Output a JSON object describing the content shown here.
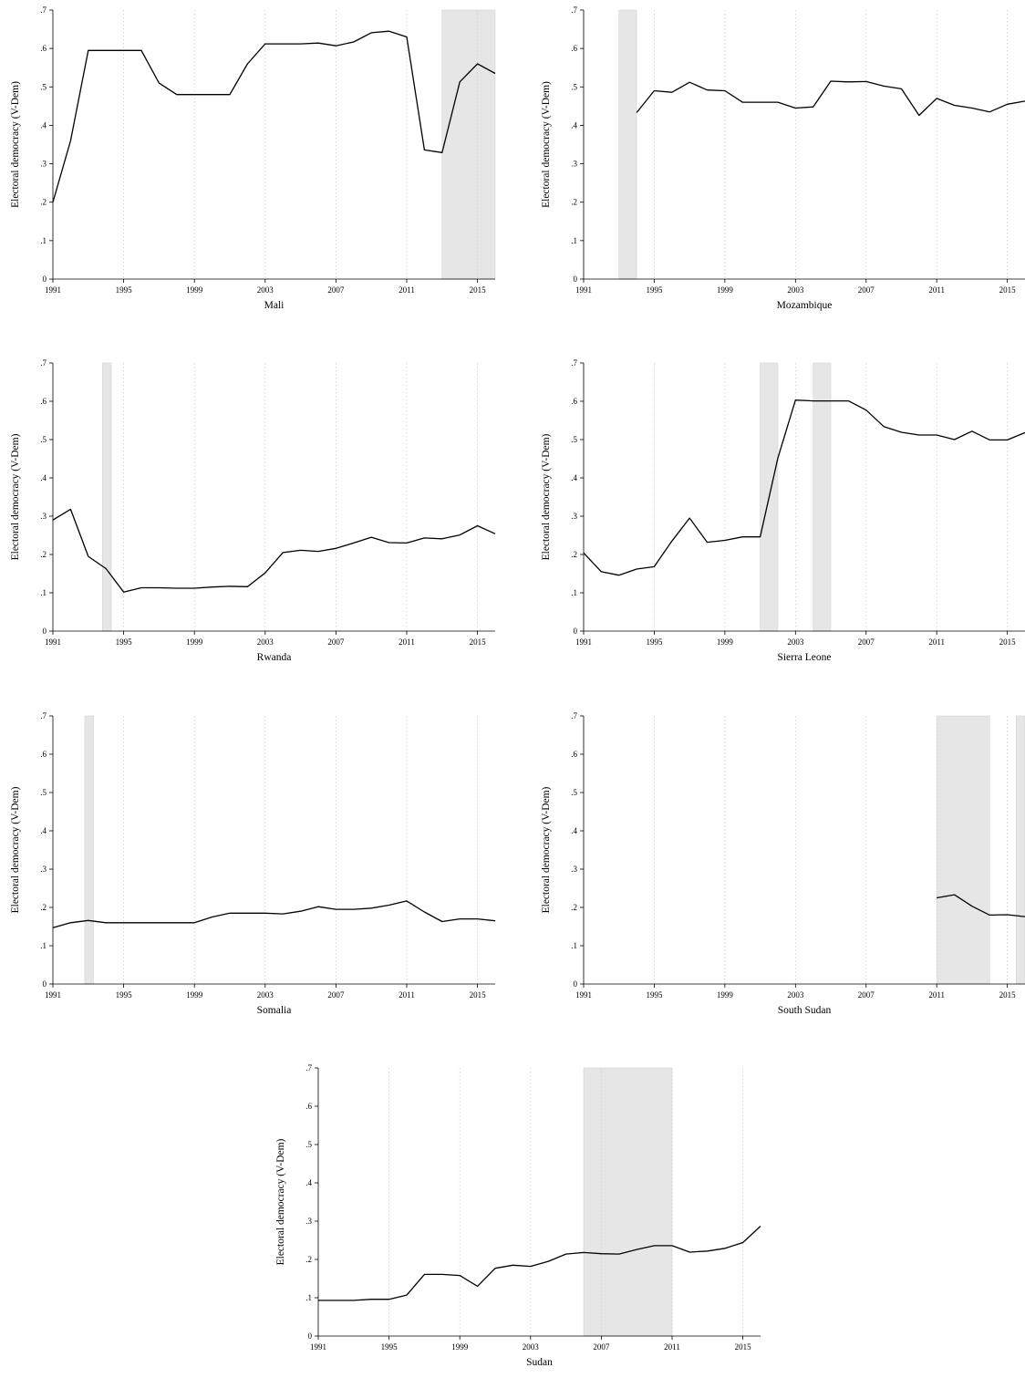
{
  "colors": {
    "line": "#000000",
    "shade": "#e6e6e6",
    "grid": "#cfcfcf",
    "axis": "#000000"
  },
  "chart_data": [
    {
      "type": "line",
      "country": "Mali",
      "xlabel": "Mali",
      "ylabel": "Electoral democracy (V-Dem)",
      "xlim": [
        1991,
        2016
      ],
      "ylim": [
        0,
        0.7
      ],
      "xticks": [
        1991,
        1995,
        1999,
        2003,
        2007,
        2011,
        2015
      ],
      "yticks": [
        0,
        0.1,
        0.2,
        0.3,
        0.4,
        0.5,
        0.6,
        0.7
      ],
      "ytick_labels": [
        "0",
        ".1",
        ".2",
        ".3",
        ".4",
        ".5",
        ".6",
        ".7"
      ],
      "grid": "vertical dotted at x ticks",
      "shaded_periods": [
        [
          2013,
          2016
        ]
      ],
      "x": [
        1991,
        1992,
        1993,
        1994,
        1995,
        1996,
        1997,
        1998,
        1999,
        2000,
        2001,
        2002,
        2003,
        2004,
        2005,
        2006,
        2007,
        2008,
        2009,
        2010,
        2011,
        2012,
        2013,
        2014,
        2015,
        2016
      ],
      "y": [
        0.2,
        0.36,
        0.595,
        0.595,
        0.595,
        0.595,
        0.51,
        0.48,
        0.48,
        0.48,
        0.48,
        0.56,
        0.612,
        0.612,
        0.612,
        0.614,
        0.607,
        0.617,
        0.641,
        0.645,
        0.63,
        0.336,
        0.329,
        0.513,
        0.56,
        0.535
      ]
    },
    {
      "type": "line",
      "country": "Mozambique",
      "xlabel": "Mozambique",
      "ylabel": "Electoral democracy (V-Dem)",
      "xlim": [
        1991,
        2016
      ],
      "ylim": [
        0,
        0.7
      ],
      "xticks": [
        1991,
        1995,
        1999,
        2003,
        2007,
        2011,
        2015
      ],
      "yticks": [
        0,
        0.1,
        0.2,
        0.3,
        0.4,
        0.5,
        0.6,
        0.7
      ],
      "ytick_labels": [
        "0",
        ".1",
        ".2",
        ".3",
        ".4",
        ".5",
        ".6",
        ".7"
      ],
      "grid": "vertical dotted at x ticks",
      "shaded_periods": [
        [
          1993,
          1994
        ]
      ],
      "x": [
        1994,
        1995,
        1996,
        1997,
        1998,
        1999,
        2000,
        2001,
        2002,
        2003,
        2004,
        2005,
        2006,
        2007,
        2008,
        2009,
        2010,
        2011,
        2012,
        2013,
        2014,
        2015,
        2016
      ],
      "y": [
        0.433,
        0.49,
        0.486,
        0.512,
        0.492,
        0.49,
        0.46,
        0.46,
        0.46,
        0.445,
        0.448,
        0.515,
        0.513,
        0.514,
        0.502,
        0.495,
        0.426,
        0.47,
        0.452,
        0.445,
        0.435,
        0.455,
        0.463
      ]
    },
    {
      "type": "line",
      "country": "Rwanda",
      "xlabel": "Rwanda",
      "ylabel": "Electoral democracy (V-Dem)",
      "xlim": [
        1991,
        2016
      ],
      "ylim": [
        0,
        0.7
      ],
      "xticks": [
        1991,
        1995,
        1999,
        2003,
        2007,
        2011,
        2015
      ],
      "yticks": [
        0,
        0.1,
        0.2,
        0.3,
        0.4,
        0.5,
        0.6,
        0.7
      ],
      "ytick_labels": [
        "0",
        ".1",
        ".2",
        ".3",
        ".4",
        ".5",
        ".6",
        ".7"
      ],
      "grid": "vertical dotted at x ticks",
      "shaded_periods": [
        [
          1993.8,
          1994.3
        ]
      ],
      "x": [
        1991,
        1992,
        1993,
        1994,
        1995,
        1996,
        1997,
        1998,
        1999,
        2000,
        2001,
        2002,
        2003,
        2004,
        2005,
        2006,
        2007,
        2008,
        2009,
        2010,
        2011,
        2012,
        2013,
        2014,
        2015,
        2016
      ],
      "y": [
        0.29,
        0.318,
        0.195,
        0.163,
        0.102,
        0.113,
        0.113,
        0.112,
        0.112,
        0.115,
        0.117,
        0.116,
        0.152,
        0.205,
        0.211,
        0.208,
        0.216,
        0.23,
        0.245,
        0.231,
        0.23,
        0.243,
        0.241,
        0.251,
        0.275,
        0.254
      ]
    },
    {
      "type": "line",
      "country": "Sierra Leone",
      "xlabel": "Sierra Leone",
      "ylabel": "Electoral democracy (V-Dem)",
      "xlim": [
        1991,
        2016
      ],
      "ylim": [
        0,
        0.7
      ],
      "xticks": [
        1991,
        1995,
        1999,
        2003,
        2007,
        2011,
        2015
      ],
      "yticks": [
        0,
        0.1,
        0.2,
        0.3,
        0.4,
        0.5,
        0.6,
        0.7
      ],
      "ytick_labels": [
        "0",
        ".1",
        ".2",
        ".3",
        ".4",
        ".5",
        ".6",
        ".7"
      ],
      "grid": "vertical dotted at x ticks",
      "shaded_periods": [
        [
          2001,
          2002
        ],
        [
          2004,
          2005
        ]
      ],
      "x": [
        1991,
        1992,
        1993,
        1994,
        1995,
        1996,
        1997,
        1998,
        1999,
        2000,
        2001,
        2002,
        2003,
        2004,
        2005,
        2006,
        2007,
        2008,
        2009,
        2010,
        2011,
        2012,
        2013,
        2014,
        2015,
        2016
      ],
      "y": [
        0.204,
        0.155,
        0.146,
        0.162,
        0.168,
        0.235,
        0.295,
        0.232,
        0.237,
        0.246,
        0.246,
        0.452,
        0.603,
        0.601,
        0.601,
        0.601,
        0.577,
        0.534,
        0.519,
        0.512,
        0.512,
        0.5,
        0.522,
        0.499,
        0.499,
        0.518
      ]
    },
    {
      "type": "line",
      "country": "Somalia",
      "xlabel": "Somalia",
      "ylabel": "Electoral democracy (V-Dem)",
      "xlim": [
        1991,
        2016
      ],
      "ylim": [
        0,
        0.7
      ],
      "xticks": [
        1991,
        1995,
        1999,
        2003,
        2007,
        2011,
        2015
      ],
      "yticks": [
        0,
        0.1,
        0.2,
        0.3,
        0.4,
        0.5,
        0.6,
        0.7
      ],
      "ytick_labels": [
        "0",
        ".1",
        ".2",
        ".3",
        ".4",
        ".5",
        ".6",
        ".7"
      ],
      "grid": "vertical dotted at x ticks",
      "shaded_periods": [
        [
          1992.8,
          1993.3
        ]
      ],
      "x": [
        1991,
        1992,
        1993,
        1994,
        1995,
        1996,
        1997,
        1998,
        1999,
        2000,
        2001,
        2002,
        2003,
        2004,
        2005,
        2006,
        2007,
        2008,
        2009,
        2010,
        2011,
        2012,
        2013,
        2014,
        2015,
        2016
      ],
      "y": [
        0.147,
        0.16,
        0.166,
        0.16,
        0.16,
        0.16,
        0.16,
        0.16,
        0.16,
        0.175,
        0.185,
        0.185,
        0.185,
        0.183,
        0.19,
        0.202,
        0.195,
        0.195,
        0.198,
        0.206,
        0.217,
        0.188,
        0.163,
        0.17,
        0.17,
        0.165
      ]
    },
    {
      "type": "line",
      "country": "South Sudan",
      "xlabel": "South Sudan",
      "ylabel": "Electoral democracy (V-Dem)",
      "xlim": [
        1991,
        2016
      ],
      "ylim": [
        0,
        0.7
      ],
      "xticks": [
        1991,
        1995,
        1999,
        2003,
        2007,
        2011,
        2015
      ],
      "yticks": [
        0,
        0.1,
        0.2,
        0.3,
        0.4,
        0.5,
        0.6,
        0.7
      ],
      "ytick_labels": [
        "0",
        ".1",
        ".2",
        ".3",
        ".4",
        ".5",
        ".6",
        ".7"
      ],
      "grid": "vertical dotted at x ticks",
      "shaded_periods": [
        [
          2011,
          2014
        ],
        [
          2015.5,
          2016
        ]
      ],
      "x": [
        2011,
        2012,
        2013,
        2014,
        2015,
        2016
      ],
      "y": [
        0.225,
        0.233,
        0.203,
        0.18,
        0.181,
        0.176
      ]
    },
    {
      "type": "line",
      "country": "Sudan",
      "xlabel": "Sudan",
      "ylabel": "Electoral democracy (V-Dem)",
      "xlim": [
        1991,
        2016
      ],
      "ylim": [
        0,
        0.7
      ],
      "xticks": [
        1991,
        1995,
        1999,
        2003,
        2007,
        2011,
        2015
      ],
      "yticks": [
        0,
        0.1,
        0.2,
        0.3,
        0.4,
        0.5,
        0.6,
        0.7
      ],
      "ytick_labels": [
        "0",
        ".1",
        ".2",
        ".3",
        ".4",
        ".5",
        ".6",
        ".7"
      ],
      "grid": "vertical dotted at x ticks",
      "shaded_periods": [
        [
          2006,
          2011
        ]
      ],
      "x": [
        1991,
        1992,
        1993,
        1994,
        1995,
        1996,
        1997,
        1998,
        1999,
        2000,
        2001,
        2002,
        2003,
        2004,
        2005,
        2006,
        2007,
        2008,
        2009,
        2010,
        2011,
        2012,
        2013,
        2014,
        2015,
        2016
      ],
      "y": [
        0.093,
        0.093,
        0.093,
        0.096,
        0.096,
        0.107,
        0.161,
        0.161,
        0.158,
        0.13,
        0.177,
        0.185,
        0.182,
        0.195,
        0.214,
        0.218,
        0.215,
        0.214,
        0.226,
        0.236,
        0.236,
        0.219,
        0.222,
        0.229,
        0.244,
        0.287
      ]
    }
  ]
}
